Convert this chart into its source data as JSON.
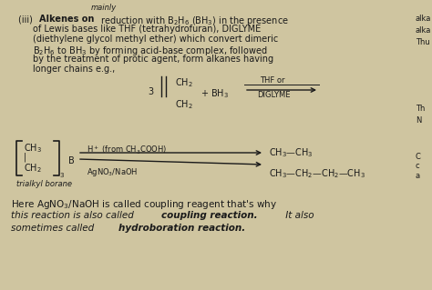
{
  "bg_color": "#cfc5a0",
  "text_color": "#1a1a1a",
  "fig_width": 4.74,
  "fig_height": 3.19,
  "dpi": 100,
  "line1": "(iii) \\mathbf{Alkenes\\ on} reduction with B$_2$H$_6$ (BH$_3$) in the presence",
  "line2": "of Lewis bases like THF (tetrahydrofuran), DIGLYME",
  "line3": "(diethylene glycol methyl ether) which convert dimeric",
  "line4": "B$_2$H$_6$ to BH$_3$ by forming acid-base complex, followed",
  "line5": "by the treatment of protic agent, form alkanes having",
  "line6": "longer chains e.g.,",
  "bottom1": "Here AgNO$_3$/NaOH is called coupling reagent that's why",
  "bottom2a": "this reaction is also called ",
  "bottom2b": "coupling reaction.",
  "bottom2c": " It also",
  "bottom3a": "sometimes called ",
  "bottom3b": "hydroboration reaction."
}
